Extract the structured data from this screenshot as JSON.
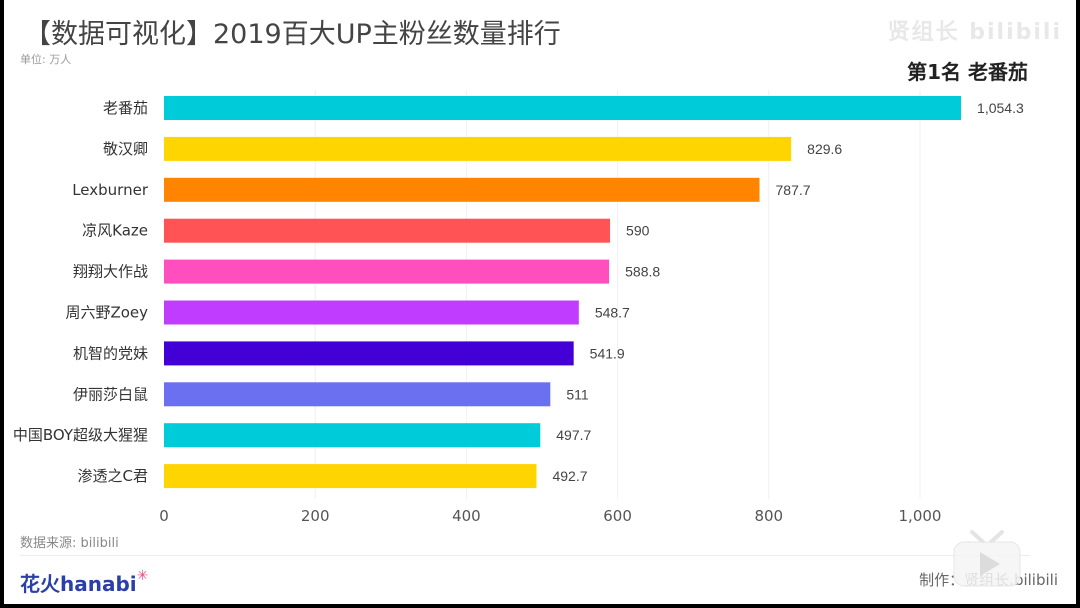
{
  "header": {
    "title": "【数据可视化】2019百大UP主粉丝数量排行",
    "unit": "单位: 万人",
    "rank_label": "第1名 老番茄",
    "watermark": "贤组长 bilibili"
  },
  "footer": {
    "source": "数据来源: bilibili",
    "logo_text": "花火hanabi",
    "logo_spark": "✳",
    "credit": "制作：贤组长.bilibili"
  },
  "chart_data": {
    "type": "bar",
    "orientation": "horizontal",
    "title": "【数据可视化】2019百大UP主粉丝数量排行",
    "xlabel": "",
    "ylabel": "",
    "unit": "万人",
    "xlim": [
      0,
      1100
    ],
    "x_ticks": [
      0,
      200,
      400,
      600,
      800,
      1000
    ],
    "x_tick_labels": [
      "0",
      "200",
      "400",
      "600",
      "800",
      "1,000"
    ],
    "grid": "vertical",
    "categories": [
      "老番茄",
      "敬汉卿",
      "Lexburner",
      "凉风Kaze",
      "翔翔大作战",
      "周六野Zoey",
      "机智的党妹",
      "伊丽莎白鼠",
      "中国BOY超级大猩猩",
      "渗透之C君"
    ],
    "values": [
      1054.3,
      829.6,
      787.7,
      590,
      588.8,
      548.7,
      541.9,
      511,
      497.7,
      492.7
    ],
    "value_labels": [
      "1,054.3",
      "829.6",
      "787.7",
      "590",
      "588.8",
      "548.7",
      "541.9",
      "511",
      "497.7",
      "492.7"
    ],
    "colors": [
      "#00cbd8",
      "#ffd500",
      "#ff8500",
      "#ff5356",
      "#ff4fbf",
      "#c03cff",
      "#4200d6",
      "#6a70f0",
      "#00cbd8",
      "#ffd500"
    ]
  }
}
